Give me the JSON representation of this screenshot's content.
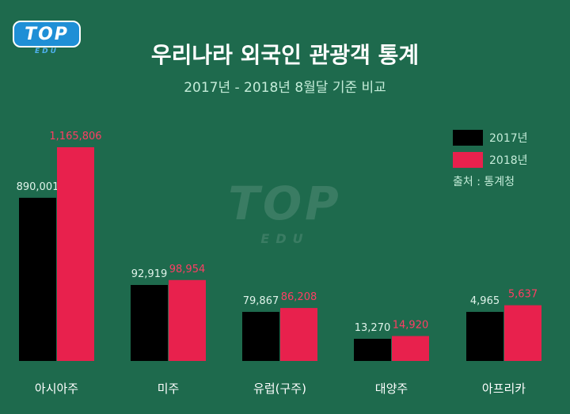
{
  "logo": {
    "text": "TOP",
    "sub": "EDU"
  },
  "colors": {
    "background": "#1e6a4d",
    "series_2017": "#000000",
    "series_2018": "#e8214d",
    "label_2017": "#dff3ea",
    "label_2018": "#ff3d63",
    "axis_label": "#ffffff"
  },
  "chart_data": {
    "type": "bar",
    "title": "우리나라 외국인 관광객 통계",
    "subtitle": "2017년 - 2018년 8월달 기준 비교",
    "categories": [
      "아시아주",
      "미주",
      "유럽(구주)",
      "대양주",
      "아프리카"
    ],
    "series": [
      {
        "name": "2017년",
        "values": [
          890001,
          92919,
          79867,
          13270,
          4965
        ],
        "labels": [
          "890,001",
          "92,919",
          "79,867",
          "13,270",
          "4,965"
        ]
      },
      {
        "name": "2018년",
        "values": [
          1165806,
          98954,
          86208,
          14920,
          5637
        ],
        "labels": [
          "1,165,806",
          "98,954",
          "86,208",
          "14,920",
          "5,637"
        ]
      }
    ],
    "legend_position": "top-right",
    "grid": false,
    "scale": "broken / not proportional",
    "source": "출처 : 통계청"
  }
}
